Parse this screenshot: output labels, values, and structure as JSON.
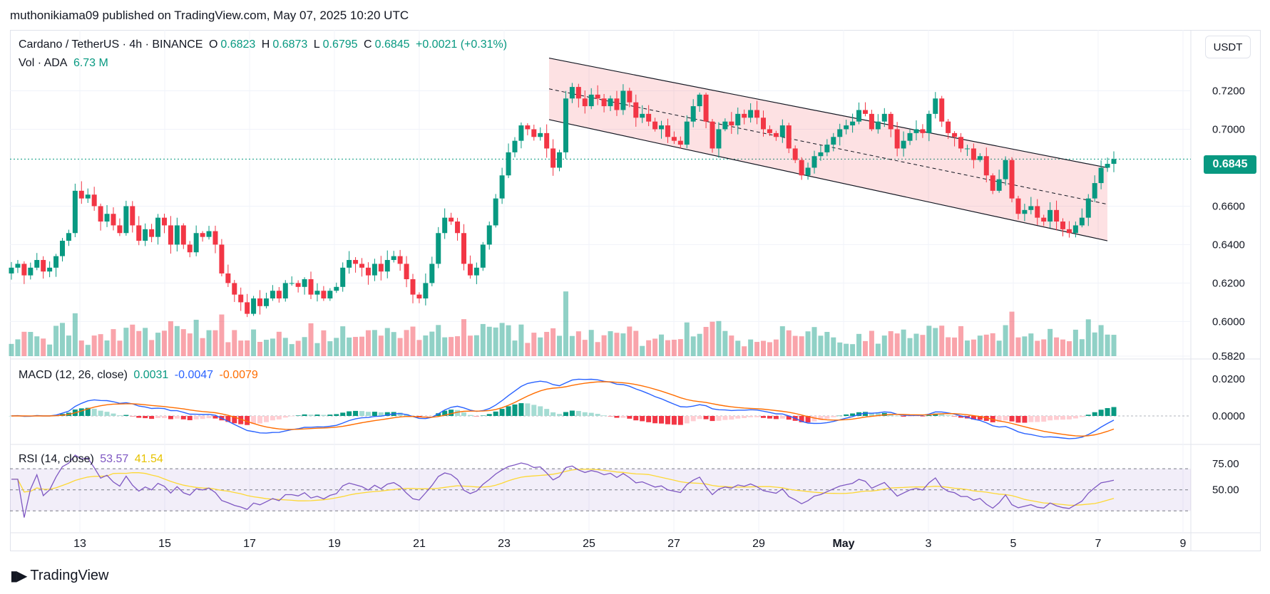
{
  "byline": "muthonikiama09 published on TradingView.com, May 07, 2025 10:20 UTC",
  "legend": {
    "symbol": "Cardano / TetherUS · 4h · BINANCE",
    "o_key": "O",
    "o_val": "0.6823",
    "h_key": "H",
    "h_val": "0.6873",
    "l_key": "L",
    "l_val": "0.6795",
    "c_key": "C",
    "c_val": "0.6845",
    "change": "+0.0021 (+0.31%)",
    "vol_label": "Vol · ADA",
    "vol_val": "6.73 M"
  },
  "macd_legend": {
    "label": "MACD (12, 26, close)",
    "hist": "0.0031",
    "macd": "-0.0047",
    "signal": "-0.0079"
  },
  "rsi_legend": {
    "label": "RSI (14, close)",
    "rsi": "53.57",
    "ma": "41.54"
  },
  "unit_button": "USDT",
  "last_price": "0.6845",
  "footer": "TradingView",
  "colors": {
    "up": "#089981",
    "down": "#f23645",
    "macd": "#2962ff",
    "signal": "#ff6d00",
    "rsi": "#7e57c2",
    "rsi_ma": "#fdd835"
  },
  "chart_data": {
    "type": "candlestick",
    "title": "Cardano / TetherUS · 4h · BINANCE",
    "price_ticks": [
      "0.7200",
      "0.7000",
      "0.6600",
      "0.6400",
      "0.6200",
      "0.6000",
      "0.5820"
    ],
    "ylim": [
      0.582,
      0.745
    ],
    "x_ticks": [
      "13",
      "15",
      "17",
      "19",
      "21",
      "23",
      "25",
      "27",
      "29",
      "May",
      "3",
      "5",
      "7",
      "9"
    ],
    "close_path": [
      0.628,
      0.63,
      0.624,
      0.628,
      0.632,
      0.626,
      0.628,
      0.634,
      0.642,
      0.646,
      0.668,
      0.664,
      0.666,
      0.66,
      0.652,
      0.656,
      0.65,
      0.646,
      0.66,
      0.65,
      0.642,
      0.648,
      0.644,
      0.654,
      0.65,
      0.64,
      0.65,
      0.64,
      0.636,
      0.646,
      0.644,
      0.647,
      0.64,
      0.625,
      0.62,
      0.614,
      0.61,
      0.604,
      0.612,
      0.608,
      0.612,
      0.616,
      0.612,
      0.62,
      0.62,
      0.618,
      0.622,
      0.614,
      0.616,
      0.612,
      0.616,
      0.618,
      0.628,
      0.632,
      0.63,
      0.628,
      0.624,
      0.63,
      0.626,
      0.632,
      0.634,
      0.63,
      0.622,
      0.614,
      0.612,
      0.62,
      0.63,
      0.646,
      0.654,
      0.652,
      0.646,
      0.63,
      0.624,
      0.628,
      0.64,
      0.65,
      0.664,
      0.676,
      0.688,
      0.694,
      0.702,
      0.7,
      0.696,
      0.698,
      0.69,
      0.68,
      0.688,
      0.716,
      0.722,
      0.716,
      0.712,
      0.718,
      0.716,
      0.712,
      0.716,
      0.71,
      0.72,
      0.714,
      0.706,
      0.708,
      0.704,
      0.7,
      0.702,
      0.696,
      0.694,
      0.692,
      0.704,
      0.712,
      0.718,
      0.704,
      0.69,
      0.7,
      0.704,
      0.702,
      0.708,
      0.706,
      0.71,
      0.706,
      0.7,
      0.698,
      0.696,
      0.702,
      0.69,
      0.684,
      0.676,
      0.68,
      0.686,
      0.688,
      0.692,
      0.696,
      0.7,
      0.702,
      0.704,
      0.71,
      0.708,
      0.7,
      0.704,
      0.708,
      0.7,
      0.69,
      0.694,
      0.698,
      0.7,
      0.698,
      0.708,
      0.716,
      0.704,
      0.698,
      0.696,
      0.69,
      0.69,
      0.684,
      0.686,
      0.676,
      0.668,
      0.674,
      0.684,
      0.664,
      0.656,
      0.658,
      0.66,
      0.654,
      0.652,
      0.658,
      0.652,
      0.648,
      0.646,
      0.65,
      0.654,
      0.664,
      0.672,
      0.68,
      0.682,
      0.6845
    ],
    "volume_note": "Vol · ADA 6.73 M",
    "channel": {
      "upper": [
        0.737,
        0.68
      ],
      "lower": [
        0.705,
        0.642
      ],
      "mid": [
        0.721,
        0.661
      ]
    },
    "macd": {
      "ticks": [
        "0.0200",
        "0.0000"
      ],
      "last_macd": -0.0047,
      "last_signal": -0.0079,
      "last_hist": 0.0031
    },
    "rsi": {
      "ticks": [
        "75.00",
        "50.00"
      ],
      "upper_band": 70,
      "lower_band": 30,
      "last_rsi": 53.57,
      "last_ma": 41.54
    }
  }
}
